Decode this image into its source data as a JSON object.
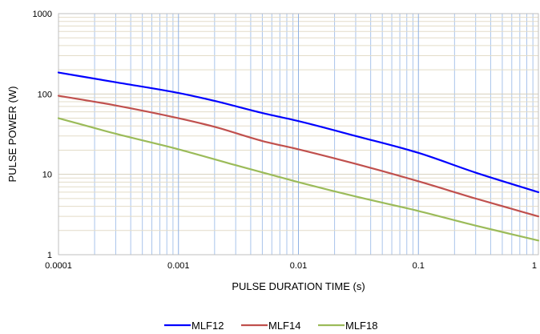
{
  "chart_data": {
    "type": "line",
    "title": "",
    "xlabel": "PULSE DURATION TIME (s)",
    "ylabel": "PULSE POWER (W)",
    "x_scale": "log",
    "y_scale": "log",
    "xlim": [
      0.0001,
      1
    ],
    "ylim": [
      1,
      1000
    ],
    "x_ticks": [
      "0.0001",
      "0.001",
      "0.01",
      "0.1",
      "1"
    ],
    "y_ticks": [
      "1",
      "10",
      "100",
      "1000"
    ],
    "grid": true,
    "legend_position": "bottom",
    "series": [
      {
        "name": "MLF12",
        "color": "#0000ff",
        "x": [
          0.0001,
          0.0003,
          0.001,
          0.002,
          0.005,
          0.01,
          0.03,
          0.1,
          0.3,
          1
        ],
        "y": [
          185,
          140,
          103,
          82,
          58,
          46,
          30,
          18.5,
          10.5,
          6
        ]
      },
      {
        "name": "MLF14",
        "color": "#c0504d",
        "x": [
          0.0001,
          0.0003,
          0.001,
          0.002,
          0.005,
          0.01,
          0.03,
          0.1,
          0.3,
          1
        ],
        "y": [
          95,
          72,
          50,
          39,
          26,
          20.5,
          13.5,
          8.2,
          5,
          3
        ]
      },
      {
        "name": "MLF18",
        "color": "#9bbb59",
        "x": [
          0.0001,
          0.0003,
          0.001,
          0.003,
          0.01,
          0.03,
          0.1,
          0.3,
          1
        ],
        "y": [
          50,
          32,
          20.5,
          13,
          8,
          5.3,
          3.5,
          2.3,
          1.5
        ]
      }
    ]
  }
}
